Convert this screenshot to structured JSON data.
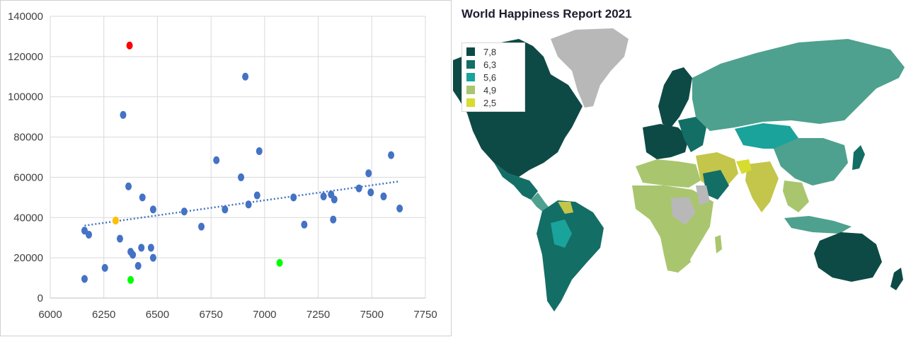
{
  "chart_data": [
    {
      "type": "scatter",
      "title": "",
      "xlabel": "",
      "ylabel": "",
      "xlim": [
        6000,
        7750
      ],
      "ylim": [
        0,
        140000
      ],
      "xticks": [
        "6000",
        "6250",
        "6500",
        "6750",
        "7000",
        "7250",
        "7500",
        "7750"
      ],
      "yticks": [
        "0",
        "20000",
        "40000",
        "60000",
        "80000",
        "100000",
        "120000",
        "140000"
      ],
      "grid": true,
      "trendline": {
        "style": "dotted",
        "x": [
          6160,
          7630
        ],
        "y": [
          36000,
          58000
        ]
      },
      "highlight_colors": {
        "default": "#4472c4",
        "red": "#ff0000",
        "yellow": "#ffc000",
        "green": "#00ff00",
        "trendline": "#4472c4"
      },
      "points": [
        {
          "x": 6370,
          "y": 125500,
          "color": "red"
        },
        {
          "x": 6305,
          "y": 38500,
          "color": "yellow"
        },
        {
          "x": 6375,
          "y": 9000,
          "color": "green"
        },
        {
          "x": 7070,
          "y": 17500,
          "color": "green"
        },
        {
          "x": 6910,
          "y": 110000
        },
        {
          "x": 6340,
          "y": 91000
        },
        {
          "x": 6160,
          "y": 33500
        },
        {
          "x": 6180,
          "y": 31500
        },
        {
          "x": 6160,
          "y": 9500
        },
        {
          "x": 6255,
          "y": 15000
        },
        {
          "x": 6325,
          "y": 29500
        },
        {
          "x": 6365,
          "y": 55500
        },
        {
          "x": 6375,
          "y": 23000
        },
        {
          "x": 6385,
          "y": 21500
        },
        {
          "x": 6410,
          "y": 16000
        },
        {
          "x": 6425,
          "y": 25000
        },
        {
          "x": 6430,
          "y": 50000
        },
        {
          "x": 6470,
          "y": 25000
        },
        {
          "x": 6480,
          "y": 20000
        },
        {
          "x": 6480,
          "y": 44000
        },
        {
          "x": 6625,
          "y": 43000
        },
        {
          "x": 6705,
          "y": 35500
        },
        {
          "x": 6775,
          "y": 68500
        },
        {
          "x": 6815,
          "y": 44000
        },
        {
          "x": 6890,
          "y": 60000
        },
        {
          "x": 6925,
          "y": 46500
        },
        {
          "x": 6965,
          "y": 51000
        },
        {
          "x": 6975,
          "y": 73000
        },
        {
          "x": 7135,
          "y": 50000
        },
        {
          "x": 7185,
          "y": 36500
        },
        {
          "x": 7275,
          "y": 50500
        },
        {
          "x": 7310,
          "y": 51500
        },
        {
          "x": 7320,
          "y": 39000
        },
        {
          "x": 7325,
          "y": 49000
        },
        {
          "x": 7440,
          "y": 54500
        },
        {
          "x": 7485,
          "y": 62000
        },
        {
          "x": 7495,
          "y": 52500
        },
        {
          "x": 7555,
          "y": 50500
        },
        {
          "x": 7590,
          "y": 71000
        },
        {
          "x": 7630,
          "y": 44500
        }
      ]
    },
    {
      "type": "heatmap",
      "title": "World Happiness Report 2021",
      "legend": {
        "position": "top-left",
        "entries": [
          {
            "label": "7,8",
            "color": "#0d4a45"
          },
          {
            "label": "6,3",
            "color": "#136e66"
          },
          {
            "label": "5,6",
            "color": "#1aa39a"
          },
          {
            "label": "4,9",
            "color": "#a9c66e"
          },
          {
            "label": "2,5",
            "color": "#d7dc30"
          }
        ]
      },
      "no_data_color": "#b8b8b8",
      "extra_colors": {
        "mid_teal": "#4ea18e",
        "olive": "#c3c64a"
      }
    }
  ]
}
